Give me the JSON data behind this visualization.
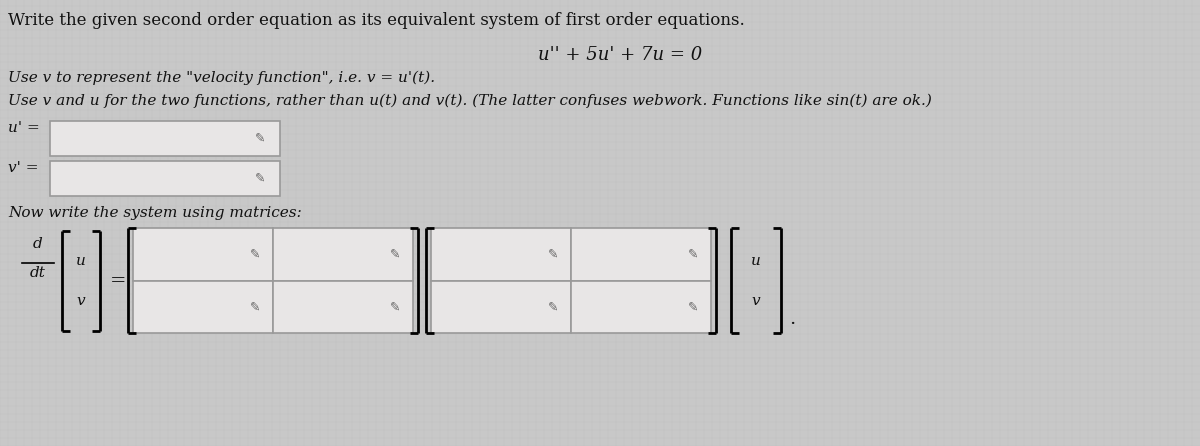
{
  "background_color": "#c8c8c8",
  "input_box_color": "#e8e6e6",
  "input_box_border": "#999999",
  "text_color": "#111111",
  "title_text": "Write the given second order equation as its equivalent system of first order equations.",
  "equation": "u'' + 5u' + 7u = 0",
  "line1": "Use v to represent the \"velocity function\", i.e. v = u'(t).",
  "line2": "Use v and u for the two functions, rather than u(t) and v(t). (The latter confuses webwork. Functions like sin(t) are ok.)",
  "u_prime_label": "u' =",
  "v_prime_label": "v' =",
  "matrix_label": "Now write the system using matrices:",
  "font_size_title": 12,
  "font_size_body": 11,
  "font_size_eq": 13
}
